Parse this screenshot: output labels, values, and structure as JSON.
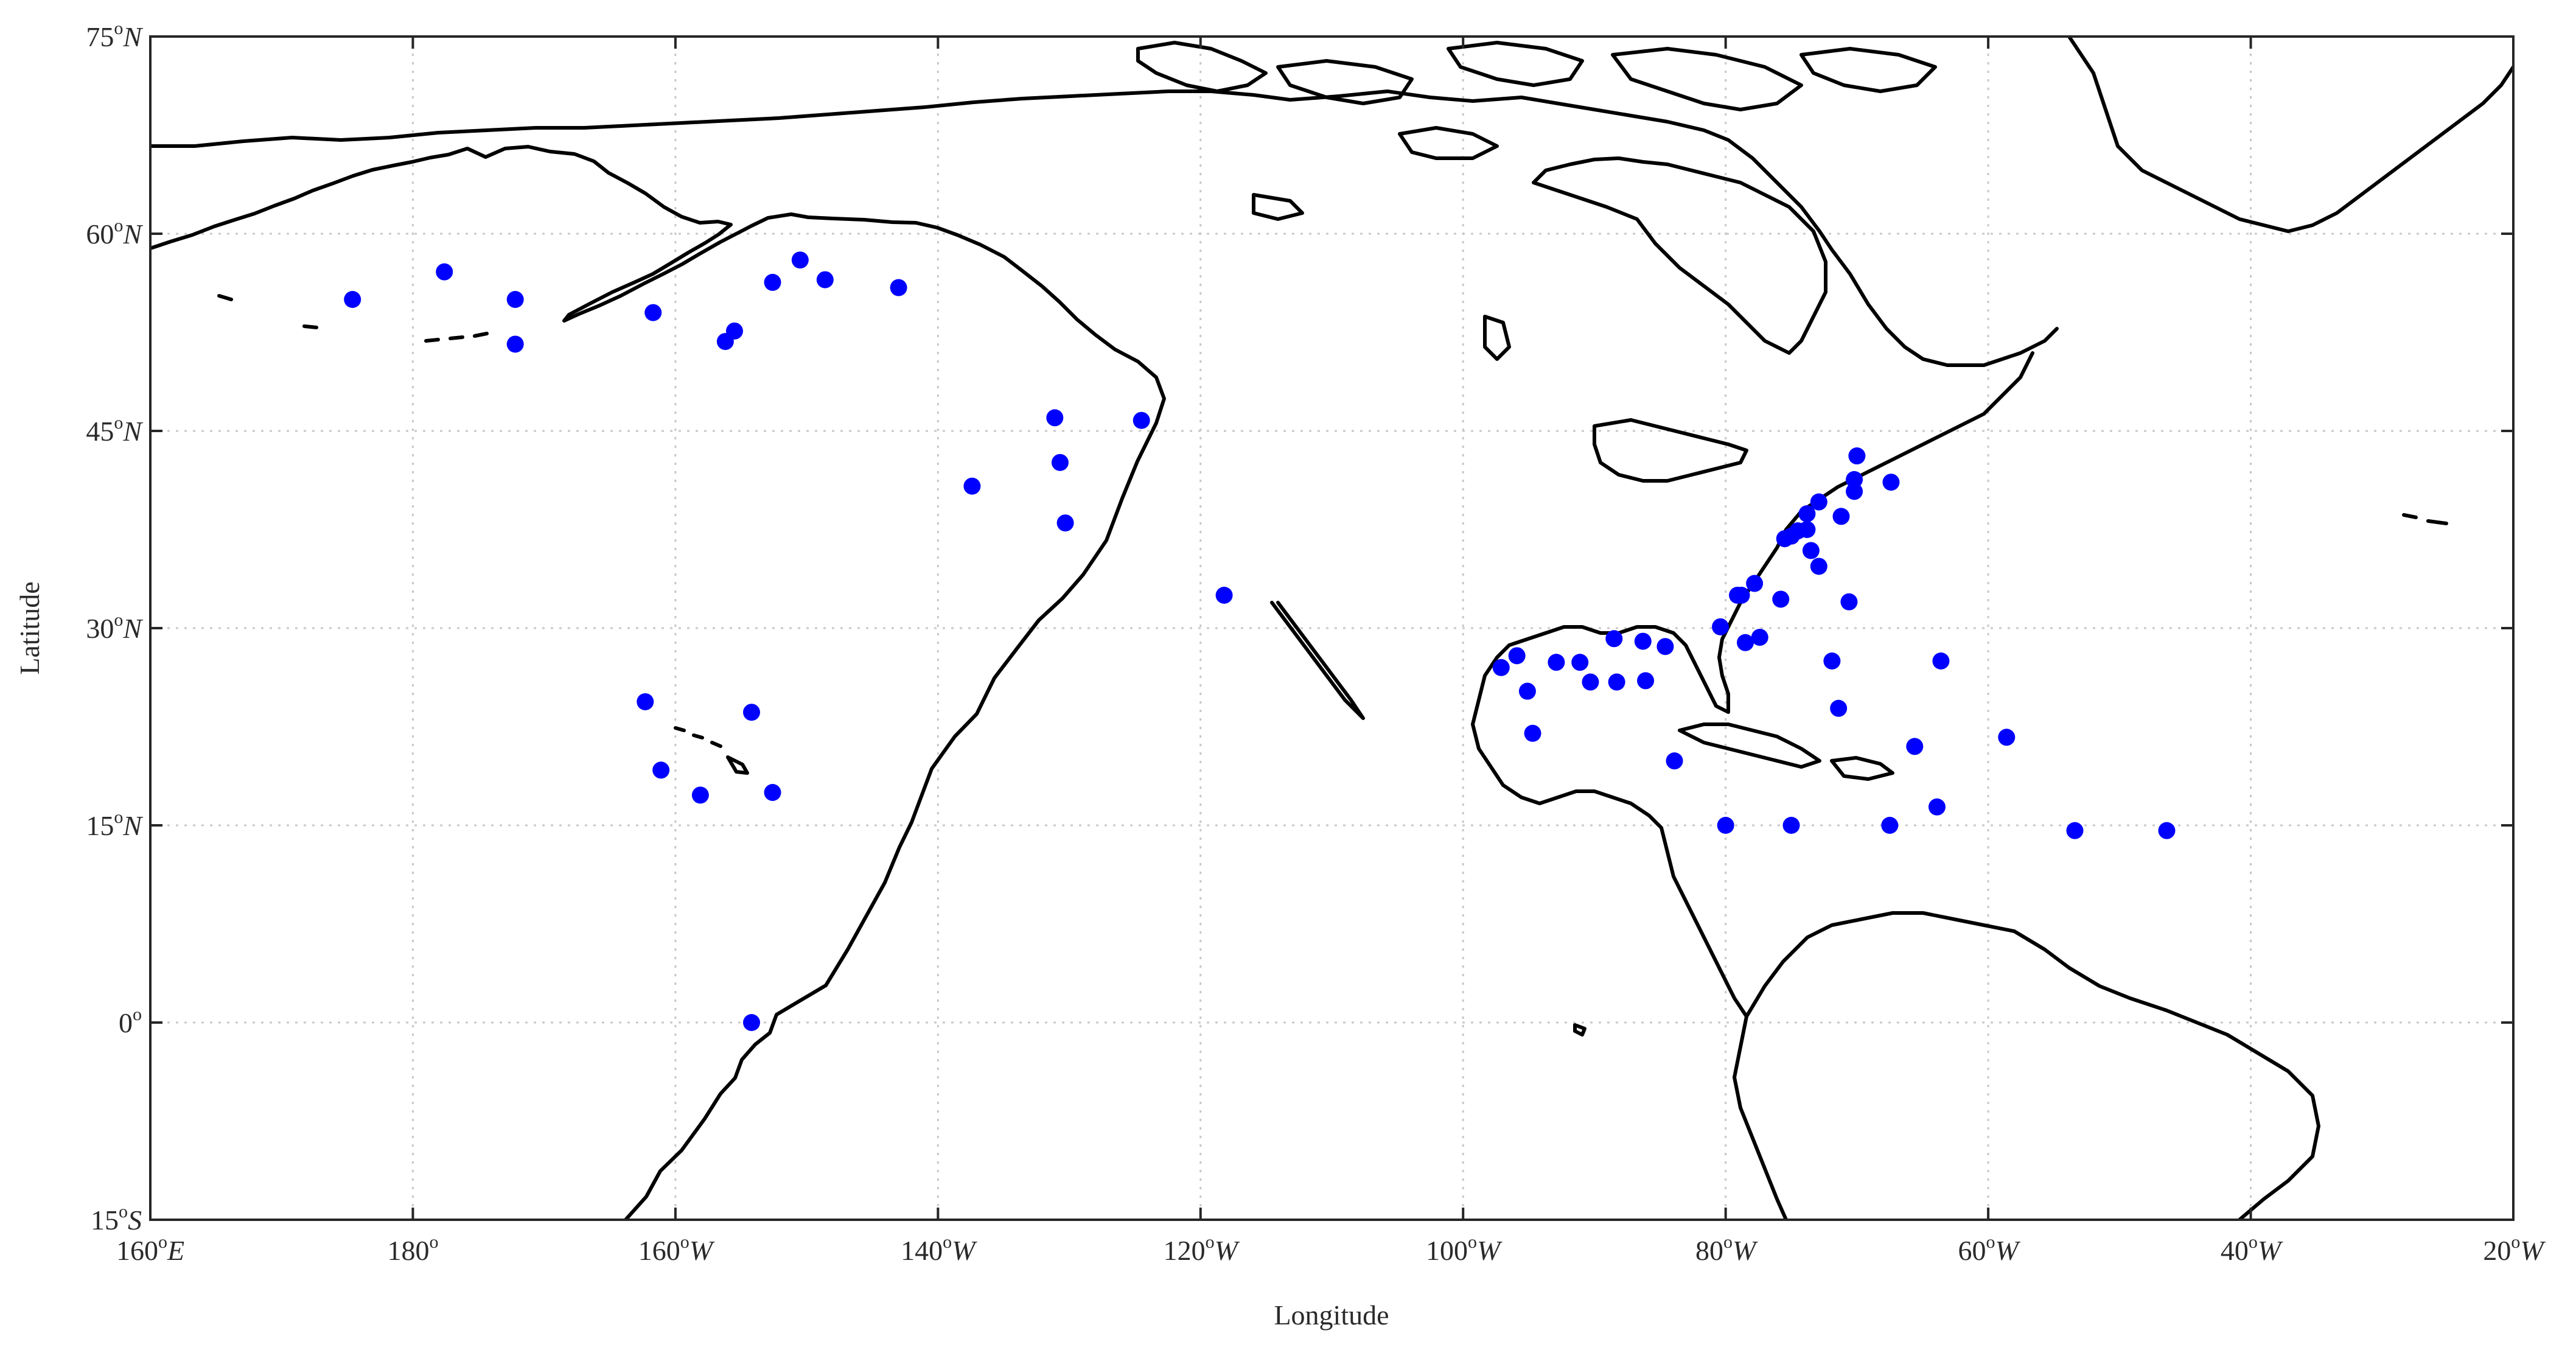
{
  "chart_data": {
    "type": "scatter",
    "xlabel": "Longitude",
    "ylabel": "Latitude",
    "xlim": [
      160,
      340
    ],
    "ylim": [
      -15,
      75
    ],
    "grid": true,
    "x_ticks": [
      {
        "value": 160,
        "num": "160",
        "deg": "o",
        "hemi": "E"
      },
      {
        "value": 180,
        "num": "180",
        "deg": "o",
        "hemi": ""
      },
      {
        "value": 200,
        "num": "160",
        "deg": "o",
        "hemi": "W"
      },
      {
        "value": 220,
        "num": "140",
        "deg": "o",
        "hemi": "W"
      },
      {
        "value": 240,
        "num": "120",
        "deg": "o",
        "hemi": "W"
      },
      {
        "value": 260,
        "num": "100",
        "deg": "o",
        "hemi": "W"
      },
      {
        "value": 280,
        "num": "80",
        "deg": "o",
        "hemi": "W"
      },
      {
        "value": 300,
        "num": "60",
        "deg": "o",
        "hemi": "W"
      },
      {
        "value": 320,
        "num": "40",
        "deg": "o",
        "hemi": "W"
      },
      {
        "value": 340,
        "num": "20",
        "deg": "o",
        "hemi": "W"
      }
    ],
    "y_ticks": [
      {
        "value": 75,
        "num": "75",
        "deg": "o",
        "hemi": "N"
      },
      {
        "value": 60,
        "num": "60",
        "deg": "o",
        "hemi": "N"
      },
      {
        "value": 45,
        "num": "45",
        "deg": "o",
        "hemi": "N"
      },
      {
        "value": 30,
        "num": "30",
        "deg": "o",
        "hemi": "N"
      },
      {
        "value": 15,
        "num": "15",
        "deg": "o",
        "hemi": "N"
      },
      {
        "value": 0,
        "num": "0",
        "deg": "o",
        "hemi": ""
      },
      {
        "value": -15,
        "num": "15",
        "deg": "o",
        "hemi": "S"
      }
    ],
    "series": [
      {
        "marker_color": "#0000ff",
        "points": [
          [
            175.4,
            55.0
          ],
          [
            182.4,
            57.1
          ],
          [
            187.8,
            55.0
          ],
          [
            187.8,
            51.6
          ],
          [
            198.3,
            54.0
          ],
          [
            203.8,
            51.8
          ],
          [
            204.5,
            52.6
          ],
          [
            207.4,
            56.3
          ],
          [
            209.5,
            58.0
          ],
          [
            211.4,
            56.5
          ],
          [
            217.0,
            55.9
          ],
          [
            222.6,
            40.8
          ],
          [
            228.9,
            46.0
          ],
          [
            229.3,
            42.6
          ],
          [
            229.7,
            38.0
          ],
          [
            235.5,
            45.8
          ],
          [
            241.8,
            32.5
          ],
          [
            197.7,
            24.4
          ],
          [
            198.9,
            19.2
          ],
          [
            201.9,
            17.3
          ],
          [
            205.8,
            23.6
          ],
          [
            207.4,
            17.5
          ],
          [
            205.8,
            0.0
          ],
          [
            262.9,
            27.0
          ],
          [
            264.1,
            27.9
          ],
          [
            264.9,
            25.2
          ],
          [
            265.3,
            22.0
          ],
          [
            267.1,
            27.4
          ],
          [
            268.9,
            27.4
          ],
          [
            269.7,
            25.9
          ],
          [
            271.5,
            29.2
          ],
          [
            271.7,
            25.9
          ],
          [
            273.7,
            29.0
          ],
          [
            273.9,
            26.0
          ],
          [
            275.4,
            28.6
          ],
          [
            276.1,
            19.9
          ],
          [
            279.6,
            30.1
          ],
          [
            280.0,
            15.0
          ],
          [
            280.9,
            32.5
          ],
          [
            281.2,
            32.5
          ],
          [
            281.5,
            28.9
          ],
          [
            282.2,
            33.4
          ],
          [
            282.6,
            29.3
          ],
          [
            284.2,
            32.2
          ],
          [
            285.0,
            15.0
          ],
          [
            284.5,
            36.8
          ],
          [
            285.0,
            37.0
          ],
          [
            285.5,
            37.4
          ],
          [
            286.2,
            38.7
          ],
          [
            286.2,
            37.5
          ],
          [
            286.5,
            35.9
          ],
          [
            287.1,
            34.7
          ],
          [
            287.1,
            39.6
          ],
          [
            288.1,
            27.5
          ],
          [
            288.6,
            23.9
          ],
          [
            288.8,
            38.5
          ],
          [
            289.4,
            32.0
          ],
          [
            289.8,
            40.4
          ],
          [
            289.8,
            41.3
          ],
          [
            290.0,
            43.1
          ],
          [
            292.5,
            15.0
          ],
          [
            292.6,
            41.1
          ],
          [
            294.4,
            21.0
          ],
          [
            296.1,
            16.4
          ],
          [
            296.4,
            27.5
          ],
          [
            301.4,
            21.7
          ],
          [
            306.6,
            14.6
          ],
          [
            313.6,
            14.6
          ]
        ]
      }
    ]
  }
}
